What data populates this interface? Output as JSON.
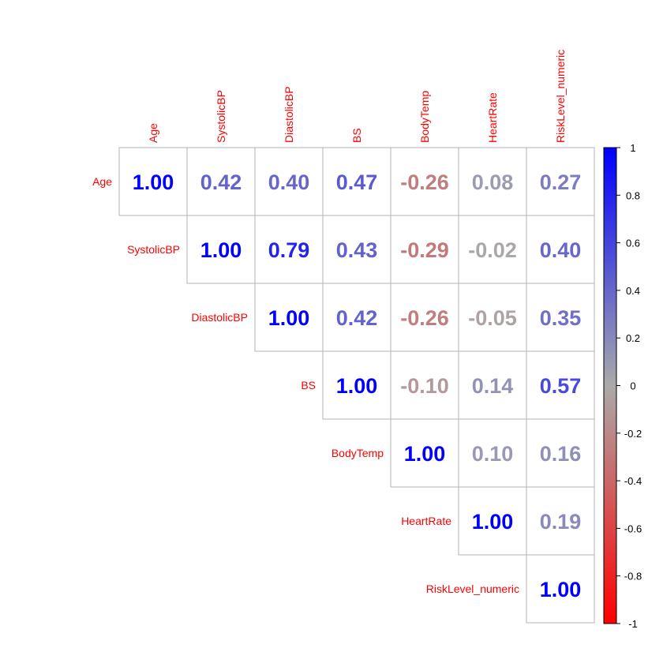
{
  "chart_data": {
    "type": "heatmap",
    "subtype": "correlation-matrix-upper-triangle",
    "variables": [
      "Age",
      "SystolicBP",
      "DiastolicBP",
      "BS",
      "BodyTemp",
      "HeartRate",
      "RiskLevel_numeric"
    ],
    "matrix": [
      [
        1.0,
        0.42,
        0.4,
        0.47,
        -0.26,
        0.08,
        0.27
      ],
      [
        null,
        1.0,
        0.79,
        0.43,
        -0.29,
        -0.02,
        0.4
      ],
      [
        null,
        null,
        1.0,
        0.42,
        -0.26,
        -0.05,
        0.35
      ],
      [
        null,
        null,
        null,
        1.0,
        -0.1,
        0.14,
        0.57
      ],
      [
        null,
        null,
        null,
        null,
        1.0,
        0.1,
        0.16
      ],
      [
        null,
        null,
        null,
        null,
        null,
        1.0,
        0.19
      ],
      [
        null,
        null,
        null,
        null,
        null,
        null,
        1.0
      ]
    ],
    "labels": [
      [
        "1.00",
        "0.42",
        "0.40",
        "0.47",
        "-0.26",
        "0.08",
        "0.27"
      ],
      [
        "",
        "1.00",
        "0.79",
        "0.43",
        "-0.29",
        "-0.02",
        "0.40"
      ],
      [
        "",
        "",
        "1.00",
        "0.42",
        "-0.26",
        "-0.05",
        "0.35"
      ],
      [
        "",
        "",
        "",
        "1.00",
        "-0.10",
        "0.14",
        "0.57"
      ],
      [
        "",
        "",
        "",
        "",
        "1.00",
        "0.10",
        "0.16"
      ],
      [
        "",
        "",
        "",
        "",
        "",
        "1.00",
        "0.19"
      ],
      [
        "",
        "",
        "",
        "",
        "",
        "",
        "1.00"
      ]
    ],
    "color_scale": {
      "min": -1,
      "max": 1,
      "colors": {
        "neg": "#ff0000",
        "mid": "#aaaaaa",
        "pos": "#0000ff"
      },
      "ticks": [
        "1",
        "0.8",
        "0.6",
        "0.4",
        "0.2",
        "0",
        "-0.2",
        "-0.4",
        "-0.6",
        "-0.8",
        "-1"
      ],
      "tick_values": [
        1,
        0.8,
        0.6,
        0.4,
        0.2,
        0,
        -0.2,
        -0.4,
        -0.6,
        -0.8,
        -1
      ]
    },
    "label_color": "#ff0000",
    "legend_position": "right"
  }
}
